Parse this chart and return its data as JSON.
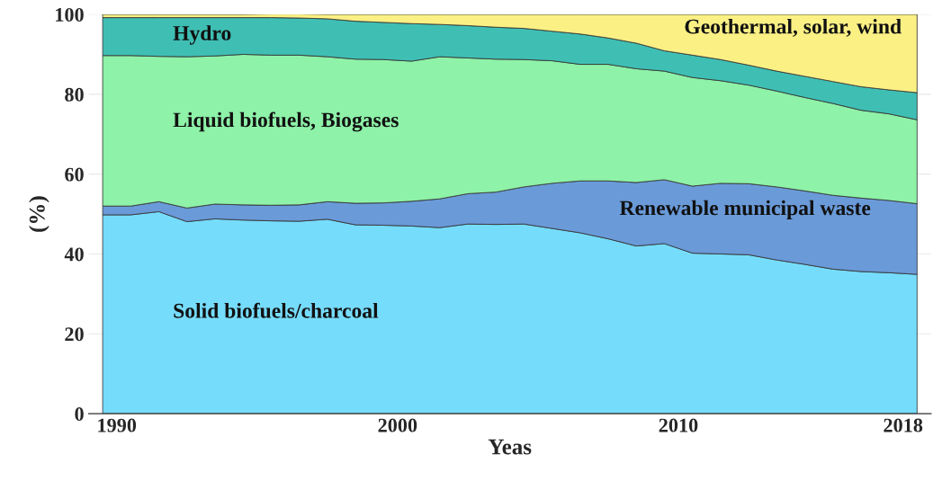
{
  "chart_data": {
    "type": "area",
    "stacked": true,
    "xlabel": "Yeas",
    "ylabel": "(%)",
    "x": [
      1989.5,
      1990.5,
      1991.5,
      1992.5,
      1993.5,
      1994.5,
      1995.5,
      1996.5,
      1997.5,
      1998.5,
      1999.5,
      2000.5,
      2001.5,
      2002.5,
      2003.5,
      2004.5,
      2005.5,
      2006.5,
      2007.5,
      2008.5,
      2009.5,
      2010.5,
      2011.5,
      2012.5,
      2013.5,
      2014.5,
      2015.5,
      2016.5,
      2017.5,
      2018.5
    ],
    "xlim": [
      1989,
      2019
    ],
    "xticks": [
      1990,
      2000,
      2010,
      2018
    ],
    "ylim": [
      0,
      100
    ],
    "yticks": [
      0,
      20,
      40,
      60,
      80,
      100
    ],
    "grid": "y",
    "legend": false,
    "series": [
      {
        "name": "Solid biofuels/charcoal",
        "color": "#76dcfc",
        "values": [
          49.8,
          49.8,
          50.6,
          48.1,
          48.8,
          48.5,
          48.3,
          48.2,
          48.7,
          47.3,
          47.2,
          47.0,
          46.6,
          47.5,
          47.4,
          47.5,
          46.4,
          45.3,
          43.8,
          42.0,
          42.6,
          40.2,
          40.0,
          39.8,
          38.5,
          37.4,
          36.2,
          35.6,
          35.3,
          34.9
        ]
      },
      {
        "name": "Renewable municipal waste",
        "color": "#6a9ad8",
        "values": [
          2.2,
          2.2,
          2.5,
          3.4,
          3.7,
          3.8,
          3.9,
          4.1,
          4.4,
          5.4,
          5.6,
          6.2,
          7.2,
          7.6,
          8.1,
          9.3,
          11.3,
          13.0,
          14.5,
          15.9,
          16.0,
          16.8,
          17.7,
          17.8,
          18.3,
          18.4,
          18.5,
          18.4,
          18.1,
          17.7
        ]
      },
      {
        "name": "Liquid biofuels, Biogases",
        "color": "#8ef2a8",
        "values": [
          37.7,
          37.7,
          36.4,
          37.9,
          37.1,
          37.7,
          37.6,
          37.5,
          36.3,
          36.1,
          35.9,
          35.1,
          35.6,
          34.0,
          33.3,
          31.9,
          30.7,
          29.2,
          29.2,
          28.5,
          27.2,
          27.2,
          25.7,
          24.7,
          24.0,
          23.4,
          23.0,
          22.0,
          21.7,
          21.0
        ]
      },
      {
        "name": "Hydro",
        "color": "#3fbfb4",
        "values": [
          9.5,
          9.5,
          9.7,
          9.8,
          9.6,
          9.2,
          9.4,
          9.3,
          9.5,
          9.5,
          9.3,
          9.4,
          8.1,
          8.1,
          8.0,
          7.8,
          7.4,
          7.6,
          6.6,
          6.4,
          5.1,
          5.6,
          5.3,
          5.0,
          5.0,
          5.3,
          5.5,
          5.9,
          6.0,
          6.8
        ]
      },
      {
        "name": "Geothermal, solar, wind",
        "color": "#fbf084",
        "values": [
          0.8,
          0.8,
          0.8,
          0.8,
          0.8,
          0.8,
          0.9,
          1.0,
          1.1,
          1.7,
          2.0,
          2.3,
          2.5,
          2.8,
          3.2,
          3.5,
          4.2,
          4.9,
          5.9,
          7.2,
          9.1,
          10.2,
          11.3,
          12.7,
          14.2,
          15.5,
          16.8,
          18.1,
          18.9,
          19.6
        ]
      }
    ]
  }
}
